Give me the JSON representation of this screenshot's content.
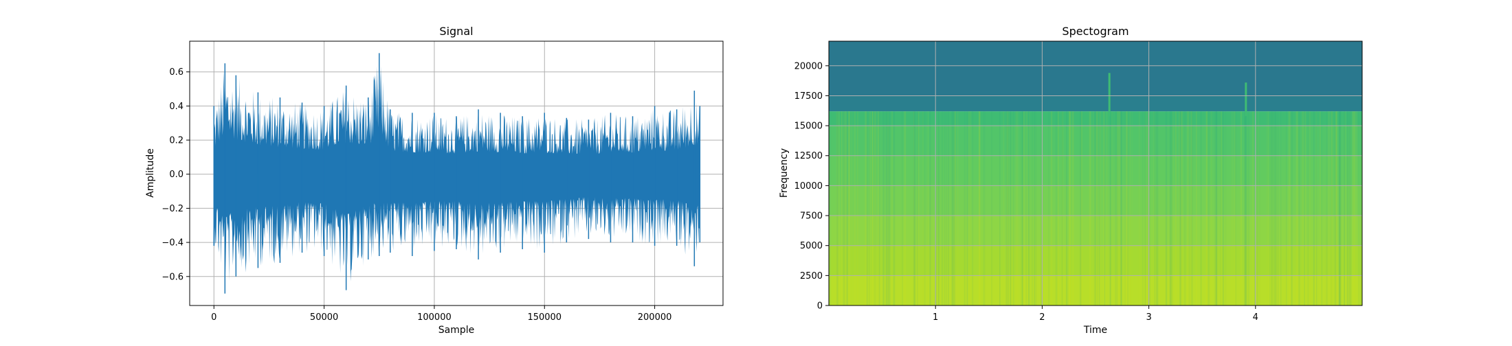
{
  "chart_data": [
    {
      "type": "line",
      "title": "Signal",
      "xlabel": "Sample",
      "ylabel": "Amplitude",
      "xlim": [
        -11000,
        231000
      ],
      "ylim": [
        -0.77,
        0.78
      ],
      "grid": true,
      "color": "#1f77b4",
      "x_ticks": [
        0,
        50000,
        100000,
        150000,
        200000
      ],
      "x_tick_labels": [
        "0",
        "50000",
        "100000",
        "150000",
        "200000"
      ],
      "y_ticks": [
        -0.6,
        -0.4,
        -0.2,
        0.0,
        0.2,
        0.4,
        0.6
      ],
      "y_tick_labels": [
        "−0.6",
        "−0.4",
        "−0.2",
        "0.0",
        "0.2",
        "0.4",
        "0.6"
      ],
      "sample_count": 220500,
      "envelope": {
        "x": [
          0,
          5000,
          10000,
          20000,
          30000,
          40000,
          50000,
          60000,
          70000,
          75000,
          80000,
          90000,
          100000,
          110000,
          120000,
          130000,
          140000,
          150000,
          160000,
          170000,
          180000,
          190000,
          200000,
          210000,
          218000,
          220500
        ],
        "max": [
          0.4,
          0.65,
          0.58,
          0.48,
          0.45,
          0.42,
          0.4,
          0.52,
          0.45,
          0.71,
          0.38,
          0.36,
          0.36,
          0.34,
          0.38,
          0.36,
          0.34,
          0.36,
          0.33,
          0.32,
          0.36,
          0.34,
          0.4,
          0.38,
          0.49,
          0.4
        ],
        "min": [
          -0.42,
          -0.7,
          -0.6,
          -0.55,
          -0.52,
          -0.46,
          -0.48,
          -0.68,
          -0.5,
          -0.48,
          -0.46,
          -0.48,
          -0.45,
          -0.44,
          -0.5,
          -0.46,
          -0.44,
          -0.46,
          -0.4,
          -0.38,
          -0.4,
          -0.4,
          -0.42,
          -0.42,
          -0.54,
          -0.4
        ]
      }
    },
    {
      "type": "heatmap",
      "title": "Spectogram",
      "xlabel": "Time",
      "ylabel": "Frequency",
      "xlim": [
        0,
        5.0
      ],
      "ylim": [
        0,
        22050
      ],
      "grid": true,
      "x_ticks": [
        1,
        2,
        3,
        4
      ],
      "x_tick_labels": [
        "1",
        "2",
        "3",
        "4"
      ],
      "y_ticks": [
        0,
        2500,
        5000,
        7500,
        10000,
        12500,
        15000,
        17500,
        20000
      ],
      "y_tick_labels": [
        "0",
        "2500",
        "5000",
        "7500",
        "10000",
        "12500",
        "15000",
        "17500",
        "20000"
      ],
      "colormap": "viridis",
      "frequency_bands": [
        {
          "from": 0,
          "to": 2500,
          "color": "#b8de29"
        },
        {
          "from": 2500,
          "to": 5000,
          "color": "#a5da31"
        },
        {
          "from": 5000,
          "to": 7500,
          "color": "#8ed645"
        },
        {
          "from": 7500,
          "to": 10000,
          "color": "#76d054"
        },
        {
          "from": 10000,
          "to": 12500,
          "color": "#62cb5f"
        },
        {
          "from": 12500,
          "to": 15000,
          "color": "#52c569"
        },
        {
          "from": 15000,
          "to": 16200,
          "color": "#3fbc73"
        },
        {
          "from": 16200,
          "to": 17500,
          "color": "#2a7f8e"
        },
        {
          "from": 17500,
          "to": 22050,
          "color": "#2a788e"
        }
      ],
      "transients": [
        {
          "time": 2.63,
          "freq_from": 15800,
          "freq_to": 19400,
          "color": "#3fbc73"
        },
        {
          "time": 3.91,
          "freq_from": 15800,
          "freq_to": 18600,
          "color": "#3fbc73"
        }
      ]
    }
  ]
}
